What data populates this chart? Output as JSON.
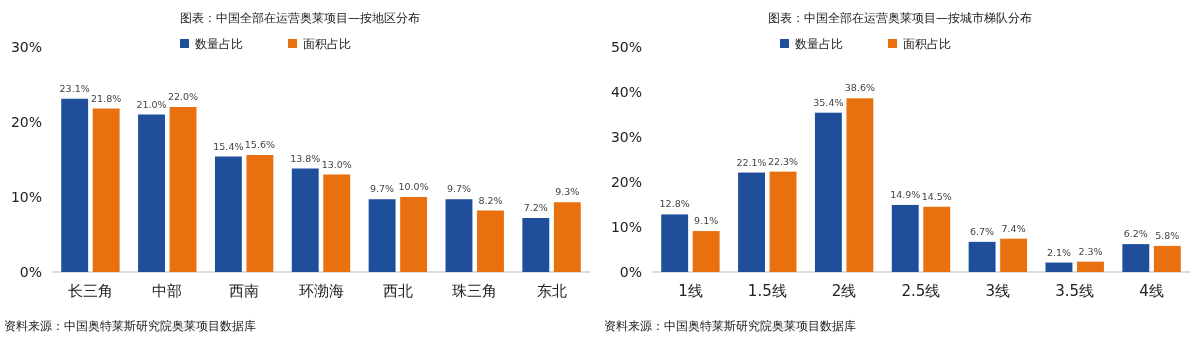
{
  "chart_data": [
    {
      "type": "bar",
      "title": "图表：中国全部在运营奥莱项目—按地区分布",
      "categories": [
        "长三角",
        "中部",
        "西南",
        "环渤海",
        "西北",
        "珠三角",
        "东北"
      ],
      "series": [
        {
          "name": "数量占比",
          "color": "#1f4e9a",
          "values": [
            23.1,
            21.0,
            15.4,
            13.8,
            9.7,
            9.7,
            7.2
          ],
          "value_labels": [
            "23.1%",
            "21.0%",
            "15.4%",
            "13.8%",
            "9.7%",
            "9.7%",
            "7.2%"
          ]
        },
        {
          "name": "面积占比",
          "color": "#e8700f",
          "values": [
            21.8,
            22.0,
            15.6,
            13.0,
            10.0,
            8.2,
            9.3
          ],
          "value_labels": [
            "21.8%",
            "22.0%",
            "15.6%",
            "13.0%",
            "10.0%",
            "8.2%",
            "9.3%"
          ]
        }
      ],
      "ylim": [
        0,
        30
      ],
      "yticks": [
        {
          "value": 0,
          "label": "0%"
        },
        {
          "value": 10,
          "label": "10%"
        },
        {
          "value": 20,
          "label": "20%"
        },
        {
          "value": 30,
          "label": "30%"
        }
      ],
      "legend": "top",
      "annotations": [
        "资料来源：中国奥特莱斯研究院奥莱项目数据库"
      ]
    },
    {
      "type": "bar",
      "title": "图表：中国全部在运营奥莱项目—按城市梯队分布",
      "categories": [
        "1线",
        "1.5线",
        "2线",
        "2.5线",
        "3线",
        "3.5线",
        "4线"
      ],
      "series": [
        {
          "name": "数量占比",
          "color": "#1f4e9a",
          "values": [
            12.8,
            22.1,
            35.4,
            14.9,
            6.7,
            2.1,
            6.2
          ],
          "value_labels": [
            "12.8%",
            "22.1%",
            "35.4%",
            "14.9%",
            "6.7%",
            "2.1%",
            "6.2%"
          ]
        },
        {
          "name": "面积占比",
          "color": "#e8700f",
          "values": [
            9.1,
            22.3,
            38.6,
            14.5,
            7.4,
            2.3,
            5.8
          ],
          "value_labels": [
            "9.1%",
            "22.3%",
            "38.6%",
            "14.5%",
            "7.4%",
            "2.3%",
            "5.8%"
          ]
        }
      ],
      "ylim": [
        0,
        50
      ],
      "yticks": [
        {
          "value": 0,
          "label": "0%"
        },
        {
          "value": 10,
          "label": "10%"
        },
        {
          "value": 20,
          "label": "20%"
        },
        {
          "value": 30,
          "label": "30%"
        },
        {
          "value": 40,
          "label": "40%"
        },
        {
          "value": 50,
          "label": "50%"
        }
      ],
      "legend": "top",
      "annotations": [
        "资料来源：中国奥特莱斯研究院奥莱项目数据库"
      ]
    }
  ]
}
